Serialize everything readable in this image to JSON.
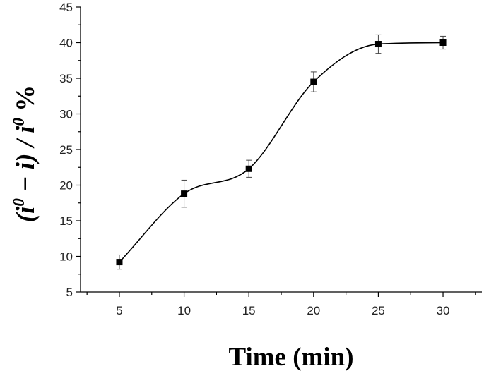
{
  "chart_data": {
    "type": "line",
    "title": "",
    "xlabel": "Time (min)",
    "ylabel": {
      "part1": "(i",
      "sup1": "0",
      "part2": " − i) / i",
      "sup2": "0",
      "part3": " %"
    },
    "xlim": [
      2,
      33
    ],
    "ylim": [
      5,
      45
    ],
    "xticks": [
      5,
      10,
      15,
      20,
      25,
      30
    ],
    "yticks": [
      5,
      10,
      15,
      20,
      25,
      30,
      35,
      40,
      45
    ],
    "grid": false,
    "legend": "none",
    "series": [
      {
        "x": [
          5,
          10,
          15,
          20,
          25,
          30
        ],
        "y": [
          9.2,
          18.8,
          22.3,
          34.5,
          39.8,
          40.0
        ],
        "error": [
          1.0,
          1.9,
          1.2,
          1.4,
          1.3,
          0.9
        ],
        "marker": "square",
        "color": "#000000"
      }
    ]
  }
}
